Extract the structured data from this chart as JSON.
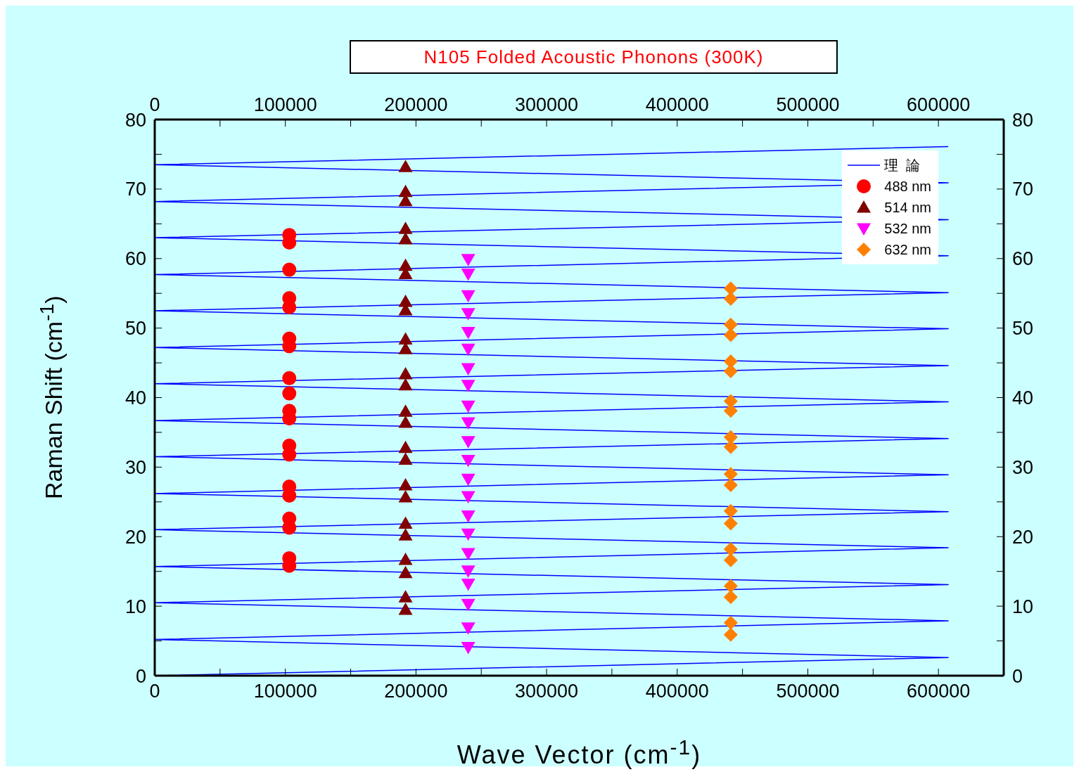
{
  "chart_data": {
    "type": "scatter",
    "title": "N105 Folded Acoustic Phonons (300K)",
    "xlabel": "Wave Vector (cm$^{-1}$)",
    "ylabel": "Raman Shift (cm$^{-1}$)",
    "xlim": [
      0,
      650000
    ],
    "xticks": [
      0,
      {
        "value": 50000,
        "label": null
      },
      100000,
      {
        "value": 150000,
        "label": null
      },
      200000,
      {
        "value": 250000,
        "label": null
      },
      300000,
      {
        "value": 350000,
        "label": null
      },
      400000,
      {
        "value": 450000,
        "label": null
      },
      500000,
      {
        "value": 550000,
        "label": null
      },
      600000,
      {
        "value": 650000,
        "label": null
      }
    ],
    "x2lim": [
      0,
      650000
    ],
    "x2ticks": [
      0,
      {
        "value": 50000,
        "label": null
      },
      100000,
      {
        "value": 150000,
        "label": null
      },
      200000,
      {
        "value": 250000,
        "label": null
      },
      300000,
      {
        "value": 350000,
        "label": null
      },
      400000,
      {
        "value": 450000,
        "label": null
      },
      500000,
      {
        "value": 550000,
        "label": null
      },
      600000,
      {
        "value": 650000,
        "label": null
      }
    ],
    "ylim": [
      0,
      80
    ],
    "yticks": [
      0,
      {
        "value": 5,
        "label": null
      },
      10,
      {
        "value": 15,
        "label": null
      },
      20,
      {
        "value": 25,
        "label": null
      },
      30,
      {
        "value": 35,
        "label": null
      },
      40,
      {
        "value": 45,
        "label": null
      },
      50,
      {
        "value": 55,
        "label": null
      },
      60,
      {
        "value": 65,
        "label": null
      },
      70,
      {
        "value": 75,
        "label": null
      },
      80
    ],
    "y2lim": [
      0,
      80
    ],
    "y2ticks": [
      0,
      {
        "value": 5,
        "label": null
      },
      10,
      {
        "value": 15,
        "label": null
      },
      20,
      {
        "value": 25,
        "label": null
      },
      30,
      {
        "value": 35,
        "label": null
      },
      40,
      {
        "value": 45,
        "label": null
      },
      50,
      {
        "value": 55,
        "label": null
      },
      60,
      {
        "value": 65,
        "label": null
      },
      70,
      {
        "value": 75,
        "label": null
      },
      80
    ],
    "legend": "top right",
    "series": [
      {
        "name": "理  論",
        "type": "line",
        "color": "#0000ff",
        "marker": "none",
        "line_style": "solid",
        "x": [
          0,
          607500,
          0,
          607500,
          0,
          607500,
          0,
          607500,
          0,
          607500,
          0,
          607500,
          0,
          607500,
          0,
          607500,
          0,
          607500,
          0,
          607500,
          0,
          607500,
          0,
          607500,
          0,
          607500,
          0,
          607500,
          0,
          607500
        ],
        "values": [
          0,
          2.6,
          5.2,
          7.9,
          10.5,
          13.1,
          15.7,
          18.4,
          21.0,
          23.6,
          26.2,
          28.9,
          31.5,
          34.1,
          36.7,
          39.4,
          42.0,
          44.6,
          47.2,
          49.9,
          52.5,
          55.1,
          57.7,
          60.4,
          63.0,
          65.6,
          68.2,
          70.9,
          73.5,
          76.1
        ]
      },
      {
        "name": "488 nm",
        "type": "scatter",
        "color": "#ff0000",
        "marker": "circle",
        "x": [
          103000,
          103000,
          103000,
          103000,
          103000,
          103000,
          103000,
          103000,
          103000,
          103000,
          103000,
          103000,
          103000,
          103000,
          103000,
          103000,
          103000,
          103000,
          103000
        ],
        "values": [
          63.4,
          62.3,
          58.4,
          54.3,
          53.0,
          48.5,
          47.4,
          42.8,
          40.6,
          38.1,
          37.0,
          33.1,
          31.8,
          27.2,
          25.9,
          22.6,
          21.3,
          16.9,
          15.8
        ]
      },
      {
        "name": "514 nm",
        "type": "scatter",
        "color": "#800000",
        "marker": "triangle",
        "x": [
          192000,
          192000,
          192000,
          192000,
          192000,
          192000,
          192000,
          192000,
          192000,
          192000,
          192000,
          192000,
          192000,
          192000,
          192000,
          192000,
          192000,
          192000,
          192000,
          192000,
          192000,
          192000,
          192000,
          192000,
          192000
        ],
        "values": [
          73.2,
          69.6,
          68.3,
          64.3,
          62.8,
          59.0,
          57.8,
          53.8,
          52.6,
          48.4,
          47.0,
          43.4,
          41.8,
          38.0,
          36.4,
          32.8,
          31.1,
          27.4,
          25.7,
          21.9,
          20.2,
          16.7,
          14.8,
          11.3,
          9.5
        ]
      },
      {
        "name": "532 nm",
        "type": "scatter",
        "color": "#ff00ff",
        "marker": "triangle-down",
        "x": [
          240000,
          240000,
          240000,
          240000,
          240000,
          240000,
          240000,
          240000,
          240000,
          240000,
          240000,
          240000,
          240000,
          240000,
          240000,
          240000,
          240000,
          240000,
          240000,
          240000,
          240000,
          240000
        ],
        "values": [
          59.9,
          57.8,
          54.7,
          52.1,
          49.4,
          47.0,
          44.2,
          41.8,
          38.8,
          36.4,
          33.7,
          31.0,
          28.3,
          25.8,
          23.0,
          20.4,
          17.6,
          15.1,
          13.2,
          10.3,
          6.9,
          4.1
        ]
      },
      {
        "name": "632 nm",
        "type": "scatter",
        "color": "#ff8000",
        "marker": "diamond",
        "x": [
          441000,
          441000,
          441000,
          441000,
          441000,
          441000,
          441000,
          441000,
          441000,
          441000,
          441000,
          441000,
          441000,
          441000,
          441000,
          441000,
          441000,
          441000,
          441000,
          441000
        ],
        "values": [
          55.7,
          54.2,
          50.5,
          49.0,
          45.2,
          43.8,
          39.5,
          38.1,
          34.3,
          32.9,
          29.0,
          27.4,
          23.7,
          21.9,
          18.2,
          16.6,
          12.9,
          11.3,
          7.6,
          5.9
        ]
      }
    ]
  }
}
